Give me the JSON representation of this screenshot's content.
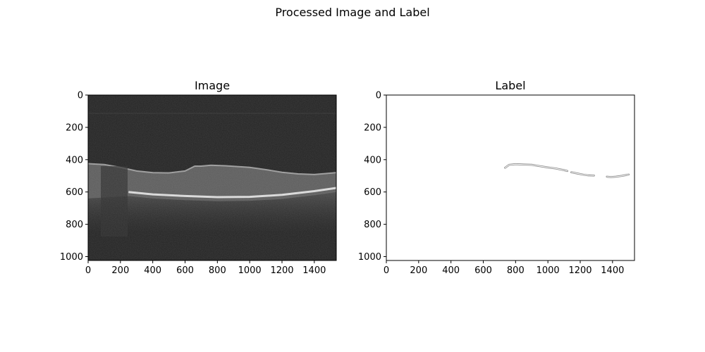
{
  "figure": {
    "title": "Processed Image and Label"
  },
  "chart_data": [
    {
      "type": "heatmap",
      "title": "Image",
      "xlim": [
        0,
        1536
      ],
      "ylim": [
        1024,
        0
      ],
      "xticks": [
        0,
        200,
        400,
        600,
        800,
        1000,
        1200,
        1400
      ],
      "yticks": [
        0,
        200,
        400,
        600,
        800,
        1000
      ],
      "colormap": "gray",
      "retina": {
        "upper_surface": [
          [
            0,
            425
          ],
          [
            100,
            430
          ],
          [
            200,
            448
          ],
          [
            300,
            470
          ],
          [
            400,
            480
          ],
          [
            500,
            482
          ],
          [
            600,
            470
          ],
          [
            660,
            440
          ],
          [
            700,
            440
          ],
          [
            760,
            435
          ],
          [
            850,
            438
          ],
          [
            1000,
            448
          ],
          [
            1100,
            462
          ],
          [
            1200,
            478
          ],
          [
            1300,
            488
          ],
          [
            1400,
            492
          ],
          [
            1536,
            480
          ]
        ],
        "rpe_band": [
          [
            250,
            600
          ],
          [
            400,
            615
          ],
          [
            600,
            625
          ],
          [
            800,
            632
          ],
          [
            1000,
            630
          ],
          [
            1200,
            618
          ],
          [
            1400,
            595
          ],
          [
            1536,
            575
          ]
        ]
      }
    },
    {
      "type": "heatmap",
      "title": "Label",
      "xlim": [
        0,
        1536
      ],
      "ylim": [
        1024,
        0
      ],
      "xticks": [
        0,
        200,
        400,
        600,
        800,
        1000,
        1200,
        1400
      ],
      "yticks": [
        0,
        200,
        400,
        600,
        800,
        1000
      ],
      "colormap": "gray_r",
      "label_segments": [
        [
          [
            735,
            450
          ],
          [
            760,
            432
          ],
          [
            800,
            428
          ],
          [
            850,
            430
          ],
          [
            900,
            432
          ],
          [
            950,
            440
          ],
          [
            1000,
            448
          ],
          [
            1050,
            455
          ],
          [
            1100,
            465
          ],
          [
            1120,
            470
          ]
        ],
        [
          [
            1145,
            478
          ],
          [
            1180,
            485
          ],
          [
            1220,
            493
          ],
          [
            1250,
            497
          ],
          [
            1285,
            498
          ]
        ],
        [
          [
            1365,
            505
          ],
          [
            1390,
            508
          ],
          [
            1420,
            505
          ],
          [
            1460,
            500
          ],
          [
            1500,
            492
          ]
        ]
      ]
    }
  ]
}
